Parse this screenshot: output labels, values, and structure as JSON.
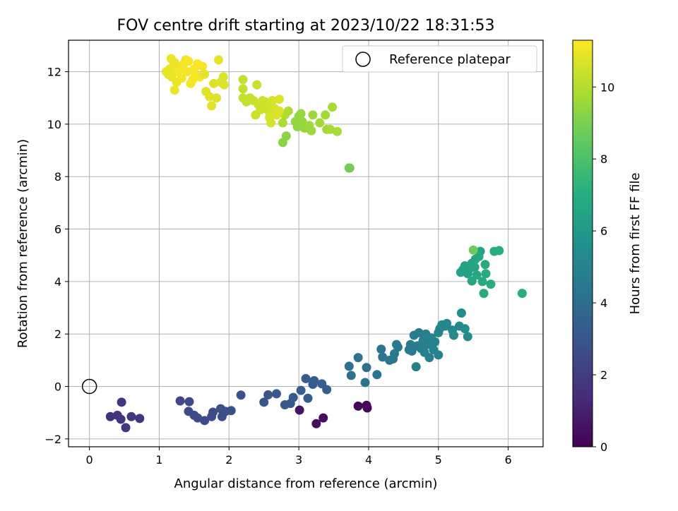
{
  "chart_data": {
    "type": "scatter",
    "title": "FOV centre drift starting at 2023/10/22 18:31:53",
    "xlabel": "Angular distance from reference (arcmin)",
    "ylabel": "Rotation from reference (arcmin)",
    "colorbar_label": "Hours from first FF file",
    "xlim": [
      -0.3,
      6.5
    ],
    "ylim": [
      -2.3,
      13.2
    ],
    "clim": [
      0,
      11.3
    ],
    "xticks": [
      "0",
      "1",
      "2",
      "3",
      "4",
      "5",
      "6"
    ],
    "yticks": [
      "−2",
      "0",
      "2",
      "4",
      "6",
      "8",
      "10",
      "12"
    ],
    "cticks": [
      "0",
      "2",
      "4",
      "6",
      "8",
      "10"
    ],
    "grid": true,
    "colormap": "viridis",
    "legend": {
      "placement": "upper right",
      "label": "Reference platepar",
      "marker": "open-circle"
    },
    "reference_point": {
      "x": 0,
      "y": 0
    },
    "points": [
      {
        "x": 3.85,
        "y": -0.75,
        "c": 0.2
      },
      {
        "x": 3.97,
        "y": -0.72,
        "c": 0.2
      },
      {
        "x": 3.98,
        "y": -0.82,
        "c": 0.2
      },
      {
        "x": 3.25,
        "y": -1.42,
        "c": 0.4
      },
      {
        "x": 3.35,
        "y": -1.2,
        "c": 0.4
      },
      {
        "x": 3.01,
        "y": -0.9,
        "c": 0.6
      },
      {
        "x": 0.3,
        "y": -1.15,
        "c": 1.6
      },
      {
        "x": 0.4,
        "y": -1.1,
        "c": 1.6
      },
      {
        "x": 0.45,
        "y": -1.25,
        "c": 1.7
      },
      {
        "x": 0.46,
        "y": -0.6,
        "c": 1.7
      },
      {
        "x": 0.52,
        "y": -1.57,
        "c": 1.7
      },
      {
        "x": 0.6,
        "y": -1.15,
        "c": 1.7
      },
      {
        "x": 0.72,
        "y": -1.22,
        "c": 1.7
      },
      {
        "x": 1.3,
        "y": -0.55,
        "c": 2.4
      },
      {
        "x": 1.42,
        "y": -0.95,
        "c": 2.5
      },
      {
        "x": 1.43,
        "y": -0.58,
        "c": 2.5
      },
      {
        "x": 1.5,
        "y": -1.1,
        "c": 2.5
      },
      {
        "x": 1.55,
        "y": -1.2,
        "c": 2.6
      },
      {
        "x": 1.65,
        "y": -1.3,
        "c": 2.6
      },
      {
        "x": 1.75,
        "y": -1.15,
        "c": 2.6
      },
      {
        "x": 1.77,
        "y": -0.98,
        "c": 2.6
      },
      {
        "x": 1.88,
        "y": -0.85,
        "c": 2.7
      },
      {
        "x": 1.9,
        "y": -1.15,
        "c": 2.7
      },
      {
        "x": 1.95,
        "y": -0.95,
        "c": 2.7
      },
      {
        "x": 2.03,
        "y": -0.92,
        "c": 2.8
      },
      {
        "x": 2.17,
        "y": -0.33,
        "c": 2.8
      },
      {
        "x": 2.5,
        "y": -0.6,
        "c": 3.0
      },
      {
        "x": 2.56,
        "y": -0.32,
        "c": 3.0
      },
      {
        "x": 2.68,
        "y": -0.28,
        "c": 3.1
      },
      {
        "x": 2.8,
        "y": -0.7,
        "c": 3.1
      },
      {
        "x": 2.88,
        "y": -0.65,
        "c": 3.2
      },
      {
        "x": 2.92,
        "y": -0.42,
        "c": 3.2
      },
      {
        "x": 3.03,
        "y": -0.15,
        "c": 3.3
      },
      {
        "x": 3.1,
        "y": 0.3,
        "c": 3.3
      },
      {
        "x": 3.13,
        "y": -0.45,
        "c": 3.3
      },
      {
        "x": 3.2,
        "y": 0.08,
        "c": 3.3
      },
      {
        "x": 3.22,
        "y": 0.22,
        "c": 3.4
      },
      {
        "x": 3.33,
        "y": 0.1,
        "c": 3.4
      },
      {
        "x": 3.4,
        "y": -0.12,
        "c": 3.4
      },
      {
        "x": 3.72,
        "y": 0.77,
        "c": 4.1
      },
      {
        "x": 3.75,
        "y": 0.42,
        "c": 4.1
      },
      {
        "x": 3.85,
        "y": 1.1,
        "c": 4.2
      },
      {
        "x": 3.95,
        "y": 0.15,
        "c": 4.2
      },
      {
        "x": 3.97,
        "y": 0.72,
        "c": 4.2
      },
      {
        "x": 4.12,
        "y": 0.45,
        "c": 4.3
      },
      {
        "x": 4.18,
        "y": 1.42,
        "c": 4.3
      },
      {
        "x": 4.2,
        "y": 1.12,
        "c": 4.4
      },
      {
        "x": 4.3,
        "y": 1.0,
        "c": 4.4
      },
      {
        "x": 4.35,
        "y": 1.05,
        "c": 4.4
      },
      {
        "x": 4.37,
        "y": 1.25,
        "c": 4.5
      },
      {
        "x": 4.4,
        "y": 1.6,
        "c": 4.5
      },
      {
        "x": 4.42,
        "y": 1.5,
        "c": 4.5
      },
      {
        "x": 4.58,
        "y": 1.4,
        "c": 4.6
      },
      {
        "x": 4.6,
        "y": 1.6,
        "c": 4.6
      },
      {
        "x": 4.62,
        "y": 1.35,
        "c": 4.6
      },
      {
        "x": 4.65,
        "y": 1.95,
        "c": 4.7
      },
      {
        "x": 4.68,
        "y": 0.75,
        "c": 4.7
      },
      {
        "x": 4.7,
        "y": 1.55,
        "c": 4.7
      },
      {
        "x": 4.72,
        "y": 2.05,
        "c": 4.7
      },
      {
        "x": 4.75,
        "y": 1.45,
        "c": 4.8
      },
      {
        "x": 4.78,
        "y": 1.75,
        "c": 4.8
      },
      {
        "x": 4.8,
        "y": 1.3,
        "c": 4.8
      },
      {
        "x": 4.82,
        "y": 2.0,
        "c": 4.9
      },
      {
        "x": 4.85,
        "y": 1.6,
        "c": 4.9
      },
      {
        "x": 4.87,
        "y": 1.1,
        "c": 4.9
      },
      {
        "x": 4.9,
        "y": 1.85,
        "c": 5.0
      },
      {
        "x": 4.93,
        "y": 1.4,
        "c": 5.0
      },
      {
        "x": 4.95,
        "y": 1.7,
        "c": 5.0
      },
      {
        "x": 5.0,
        "y": 2.05,
        "c": 5.1
      },
      {
        "x": 5.0,
        "y": 1.2,
        "c": 5.1
      },
      {
        "x": 5.02,
        "y": 2.2,
        "c": 5.1
      },
      {
        "x": 5.05,
        "y": 2.35,
        "c": 5.2
      },
      {
        "x": 5.1,
        "y": 2.3,
        "c": 5.2
      },
      {
        "x": 5.12,
        "y": 2.4,
        "c": 5.2
      },
      {
        "x": 5.2,
        "y": 2.15,
        "c": 5.3
      },
      {
        "x": 5.22,
        "y": 1.95,
        "c": 5.3
      },
      {
        "x": 5.3,
        "y": 2.3,
        "c": 5.3
      },
      {
        "x": 5.33,
        "y": 2.8,
        "c": 5.4
      },
      {
        "x": 5.38,
        "y": 2.2,
        "c": 5.4
      },
      {
        "x": 5.42,
        "y": 1.9,
        "c": 5.4
      },
      {
        "x": 5.32,
        "y": 4.35,
        "c": 6.4
      },
      {
        "x": 5.35,
        "y": 4.45,
        "c": 6.4
      },
      {
        "x": 5.38,
        "y": 4.6,
        "c": 6.5
      },
      {
        "x": 5.42,
        "y": 4.3,
        "c": 6.5
      },
      {
        "x": 5.45,
        "y": 4.5,
        "c": 6.5
      },
      {
        "x": 5.48,
        "y": 4.7,
        "c": 6.6
      },
      {
        "x": 5.48,
        "y": 4.02,
        "c": 6.6
      },
      {
        "x": 5.52,
        "y": 4.55,
        "c": 6.6
      },
      {
        "x": 5.53,
        "y": 4.85,
        "c": 6.6
      },
      {
        "x": 5.55,
        "y": 4.25,
        "c": 6.7
      },
      {
        "x": 5.58,
        "y": 4.95,
        "c": 6.7
      },
      {
        "x": 5.6,
        "y": 5.15,
        "c": 6.7
      },
      {
        "x": 5.63,
        "y": 4.0,
        "c": 6.8
      },
      {
        "x": 5.65,
        "y": 3.55,
        "c": 6.8
      },
      {
        "x": 5.67,
        "y": 4.65,
        "c": 6.8
      },
      {
        "x": 5.68,
        "y": 4.3,
        "c": 6.8
      },
      {
        "x": 5.75,
        "y": 3.9,
        "c": 6.9
      },
      {
        "x": 5.8,
        "y": 5.15,
        "c": 6.9
      },
      {
        "x": 5.87,
        "y": 5.18,
        "c": 7.0
      },
      {
        "x": 6.2,
        "y": 3.55,
        "c": 7.0
      },
      {
        "x": 5.5,
        "y": 5.2,
        "c": 8.7
      },
      {
        "x": 3.72,
        "y": 8.33,
        "c": 8.8
      },
      {
        "x": 3.73,
        "y": 8.33,
        "c": 8.8
      },
      {
        "x": 2.77,
        "y": 9.3,
        "c": 9.3
      },
      {
        "x": 2.82,
        "y": 9.55,
        "c": 9.3
      },
      {
        "x": 2.95,
        "y": 10.1,
        "c": 9.4
      },
      {
        "x": 2.98,
        "y": 9.9,
        "c": 9.4
      },
      {
        "x": 3.0,
        "y": 10.3,
        "c": 9.4
      },
      {
        "x": 3.03,
        "y": 10.4,
        "c": 9.5
      },
      {
        "x": 3.05,
        "y": 10.1,
        "c": 9.5
      },
      {
        "x": 3.08,
        "y": 9.85,
        "c": 9.5
      },
      {
        "x": 3.15,
        "y": 9.95,
        "c": 9.6
      },
      {
        "x": 3.18,
        "y": 9.75,
        "c": 9.6
      },
      {
        "x": 3.2,
        "y": 10.35,
        "c": 9.6
      },
      {
        "x": 3.3,
        "y": 10.05,
        "c": 9.7
      },
      {
        "x": 3.38,
        "y": 10.35,
        "c": 9.7
      },
      {
        "x": 3.4,
        "y": 9.8,
        "c": 9.7
      },
      {
        "x": 3.45,
        "y": 9.8,
        "c": 9.8
      },
      {
        "x": 3.48,
        "y": 10.65,
        "c": 9.8
      },
      {
        "x": 3.55,
        "y": 9.72,
        "c": 9.8
      },
      {
        "x": 2.77,
        "y": 10.05,
        "c": 9.9
      },
      {
        "x": 2.8,
        "y": 10.35,
        "c": 9.9
      },
      {
        "x": 2.85,
        "y": 10.5,
        "c": 9.9
      },
      {
        "x": 2.2,
        "y": 11.0,
        "c": 10.3
      },
      {
        "x": 2.2,
        "y": 11.35,
        "c": 10.3
      },
      {
        "x": 2.2,
        "y": 11.7,
        "c": 10.3
      },
      {
        "x": 2.25,
        "y": 10.85,
        "c": 10.3
      },
      {
        "x": 2.3,
        "y": 11.0,
        "c": 10.3
      },
      {
        "x": 2.35,
        "y": 10.9,
        "c": 10.4
      },
      {
        "x": 2.38,
        "y": 10.35,
        "c": 10.4
      },
      {
        "x": 2.4,
        "y": 11.5,
        "c": 10.4
      },
      {
        "x": 2.42,
        "y": 10.75,
        "c": 10.4
      },
      {
        "x": 2.45,
        "y": 10.55,
        "c": 10.4
      },
      {
        "x": 2.48,
        "y": 10.9,
        "c": 10.5
      },
      {
        "x": 2.5,
        "y": 10.6,
        "c": 10.5
      },
      {
        "x": 2.52,
        "y": 10.85,
        "c": 10.5
      },
      {
        "x": 2.55,
        "y": 10.7,
        "c": 10.5
      },
      {
        "x": 2.57,
        "y": 10.5,
        "c": 10.5
      },
      {
        "x": 2.58,
        "y": 10.25,
        "c": 10.6
      },
      {
        "x": 2.6,
        "y": 10.05,
        "c": 10.6
      },
      {
        "x": 2.62,
        "y": 10.9,
        "c": 10.6
      },
      {
        "x": 2.63,
        "y": 10.4,
        "c": 10.6
      },
      {
        "x": 2.65,
        "y": 10.6,
        "c": 10.6
      },
      {
        "x": 2.68,
        "y": 10.35,
        "c": 10.7
      },
      {
        "x": 2.72,
        "y": 10.95,
        "c": 10.7
      },
      {
        "x": 2.72,
        "y": 10.5,
        "c": 10.7
      },
      {
        "x": 1.1,
        "y": 12.0,
        "c": 10.9
      },
      {
        "x": 1.13,
        "y": 11.9,
        "c": 10.9
      },
      {
        "x": 1.15,
        "y": 12.1,
        "c": 10.9
      },
      {
        "x": 1.17,
        "y": 12.5,
        "c": 11.0
      },
      {
        "x": 1.18,
        "y": 11.8,
        "c": 11.0
      },
      {
        "x": 1.2,
        "y": 12.2,
        "c": 11.0
      },
      {
        "x": 1.22,
        "y": 12.35,
        "c": 11.0
      },
      {
        "x": 1.22,
        "y": 11.3,
        "c": 11.0
      },
      {
        "x": 1.25,
        "y": 11.6,
        "c": 11.0
      },
      {
        "x": 1.27,
        "y": 12.0,
        "c": 11.1
      },
      {
        "x": 1.3,
        "y": 12.15,
        "c": 11.1
      },
      {
        "x": 1.32,
        "y": 11.75,
        "c": 11.1
      },
      {
        "x": 1.35,
        "y": 12.3,
        "c": 11.1
      },
      {
        "x": 1.38,
        "y": 12.45,
        "c": 11.1
      },
      {
        "x": 1.4,
        "y": 12.0,
        "c": 11.1
      },
      {
        "x": 1.42,
        "y": 12.4,
        "c": 11.2
      },
      {
        "x": 1.45,
        "y": 11.55,
        "c": 11.2
      },
      {
        "x": 1.48,
        "y": 11.7,
        "c": 11.2
      },
      {
        "x": 1.5,
        "y": 12.1,
        "c": 11.2
      },
      {
        "x": 1.52,
        "y": 11.85,
        "c": 11.2
      },
      {
        "x": 1.55,
        "y": 12.3,
        "c": 11.2
      },
      {
        "x": 1.58,
        "y": 11.8,
        "c": 11.2
      },
      {
        "x": 1.62,
        "y": 12.2,
        "c": 11.2
      },
      {
        "x": 1.65,
        "y": 11.9,
        "c": 10.9
      },
      {
        "x": 1.67,
        "y": 11.25,
        "c": 10.8
      },
      {
        "x": 1.72,
        "y": 11.05,
        "c": 10.8
      },
      {
        "x": 1.75,
        "y": 10.7,
        "c": 10.8
      },
      {
        "x": 1.78,
        "y": 11.55,
        "c": 10.7
      },
      {
        "x": 1.82,
        "y": 11.0,
        "c": 10.7
      },
      {
        "x": 1.85,
        "y": 12.45,
        "c": 10.9
      },
      {
        "x": 1.88,
        "y": 11.6,
        "c": 10.8
      },
      {
        "x": 1.92,
        "y": 11.8,
        "c": 10.7
      },
      {
        "x": 1.93,
        "y": 11.5,
        "c": 10.7
      }
    ]
  }
}
